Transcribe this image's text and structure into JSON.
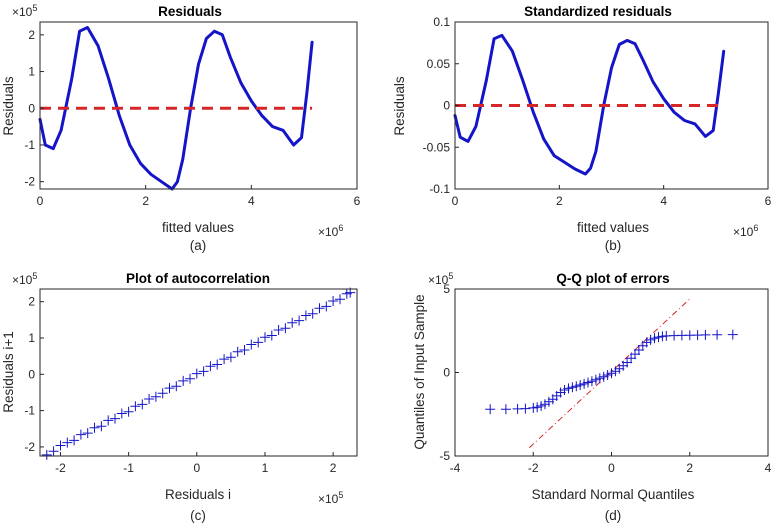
{
  "chart_data": [
    {
      "type": "line",
      "title": "Residuals",
      "xlabel": "fitted values",
      "ylabel": "Residuals",
      "caption": "(a)",
      "x_exponent_label": "×10",
      "x_exponent_power": "6",
      "y_exponent_label": "×10",
      "y_exponent_power": "5",
      "xlim": [
        0,
        6000000
      ],
      "ylim": [
        -220000,
        235000
      ],
      "x_ticks": [
        0,
        2000000,
        4000000,
        6000000
      ],
      "x_tick_labels": [
        "0",
        "2",
        "4",
        "6"
      ],
      "y_ticks": [
        -200000,
        -100000,
        0,
        100000,
        200000
      ],
      "y_tick_labels": [
        "-2",
        "-1",
        "0",
        "1",
        "2"
      ],
      "grid": false,
      "series": [
        {
          "color": "#1414c8",
          "x": [
            0,
            100000,
            250000,
            400000,
            600000,
            750000,
            900000,
            1100000,
            1300000,
            1500000,
            1700000,
            1900000,
            2100000,
            2300000,
            2500000,
            2600000,
            2700000,
            2850000,
            3000000,
            3150000,
            3300000,
            3450000,
            3600000,
            3800000,
            4000000,
            4200000,
            4400000,
            4600000,
            4800000,
            4950000,
            5050000,
            5150000
          ],
          "y": [
            -30000,
            -100000,
            -110000,
            -60000,
            80000,
            210000,
            220000,
            170000,
            80000,
            -20000,
            -100000,
            -150000,
            -180000,
            -200000,
            -220000,
            -200000,
            -140000,
            0,
            120000,
            190000,
            210000,
            200000,
            140000,
            70000,
            20000,
            -20000,
            -50000,
            -60000,
            -100000,
            -80000,
            40000,
            180000
          ]
        },
        {
          "color": "#d62728",
          "dashed": true,
          "x": [
            0,
            5150000
          ],
          "y": [
            0,
            0
          ]
        }
      ]
    },
    {
      "type": "line",
      "title": "Standardized residuals",
      "xlabel": "fitted values",
      "ylabel": "Residuals",
      "caption": "(b)",
      "x_exponent_label": "×10",
      "x_exponent_power": "6",
      "xlim": [
        0,
        6000000
      ],
      "ylim": [
        -0.1,
        0.1
      ],
      "x_ticks": [
        0,
        2000000,
        4000000,
        6000000
      ],
      "x_tick_labels": [
        "0",
        "2",
        "4",
        "6"
      ],
      "y_ticks": [
        -0.1,
        -0.05,
        0,
        0.05,
        0.1
      ],
      "y_tick_labels": [
        "-0.1",
        "-0.05",
        "0",
        "0.05",
        "0.1"
      ],
      "grid": false,
      "series": [
        {
          "color": "#1414c8",
          "x": [
            0,
            100000,
            250000,
            400000,
            600000,
            750000,
            900000,
            1100000,
            1300000,
            1500000,
            1700000,
            1900000,
            2100000,
            2300000,
            2500000,
            2600000,
            2700000,
            2850000,
            3000000,
            3150000,
            3300000,
            3450000,
            3600000,
            3800000,
            4000000,
            4200000,
            4400000,
            4600000,
            4800000,
            4950000,
            5050000,
            5150000
          ],
          "y": [
            -0.012,
            -0.038,
            -0.043,
            -0.025,
            0.03,
            0.08,
            0.084,
            0.065,
            0.03,
            -0.008,
            -0.04,
            -0.06,
            -0.068,
            -0.076,
            -0.082,
            -0.075,
            -0.055,
            0,
            0.045,
            0.073,
            0.078,
            0.074,
            0.055,
            0.028,
            0.008,
            -0.008,
            -0.018,
            -0.022,
            -0.037,
            -0.03,
            0.015,
            0.065
          ]
        },
        {
          "color": "#d62728",
          "dashed": true,
          "x": [
            0,
            5150000
          ],
          "y": [
            0,
            0
          ]
        }
      ]
    },
    {
      "type": "scatter",
      "title": "Plot of autocorrelation",
      "xlabel": "Residuals i",
      "ylabel": "Residuals i+1",
      "caption": "(c)",
      "x_exponent_label": "×10",
      "x_exponent_power": "5",
      "y_exponent_label": "×10",
      "y_exponent_power": "5",
      "xlim": [
        -230000,
        235000
      ],
      "ylim": [
        -225000,
        235000
      ],
      "x_ticks": [
        -200000,
        -100000,
        0,
        100000,
        200000
      ],
      "x_tick_labels": [
        "-2",
        "-1",
        "0",
        "1",
        "2"
      ],
      "y_ticks": [
        -200000,
        -100000,
        0,
        100000,
        200000
      ],
      "y_tick_labels": [
        "-2",
        "-1",
        "0",
        "1",
        "2"
      ],
      "grid": false,
      "marker": "+",
      "color": "#1414c8",
      "series": [
        {
          "x": [
            -220000,
            -210000,
            -200000,
            -190000,
            -180000,
            -170000,
            -160000,
            -150000,
            -140000,
            -130000,
            -120000,
            -110000,
            -100000,
            -90000,
            -80000,
            -70000,
            -60000,
            -50000,
            -40000,
            -30000,
            -20000,
            -10000,
            0,
            10000,
            20000,
            30000,
            40000,
            50000,
            60000,
            70000,
            80000,
            90000,
            100000,
            110000,
            120000,
            130000,
            140000,
            150000,
            160000,
            170000,
            180000,
            190000,
            200000,
            210000,
            220000,
            225000
          ],
          "y": [
            -222000,
            -212000,
            -196000,
            -188000,
            -182000,
            -166000,
            -162000,
            -147000,
            -143000,
            -127000,
            -122000,
            -108000,
            -103000,
            -88000,
            -83000,
            -68000,
            -62000,
            -52000,
            -38000,
            -33000,
            -18000,
            -12000,
            2000,
            8000,
            22000,
            27000,
            42000,
            47000,
            62000,
            67000,
            82000,
            88000,
            102000,
            107000,
            122000,
            127000,
            142000,
            148000,
            162000,
            167000,
            182000,
            187000,
            202000,
            207000,
            222000,
            225000
          ]
        }
      ]
    },
    {
      "type": "scatter",
      "title": "Q-Q plot of errors",
      "xlabel": "Standard Normal Quantiles",
      "ylabel": "Quantiles of Input Sample",
      "caption": "(d)",
      "y_exponent_label": "×10",
      "y_exponent_power": "5",
      "xlim": [
        -4,
        4
      ],
      "ylim": [
        -500000,
        500000
      ],
      "x_ticks": [
        -4,
        -2,
        0,
        2,
        4
      ],
      "x_tick_labels": [
        "-4",
        "-2",
        "0",
        "2",
        "4"
      ],
      "y_ticks": [
        -500000,
        0,
        500000
      ],
      "y_tick_labels": [
        "-5",
        "0",
        "5"
      ],
      "grid": false,
      "marker": "+",
      "color": "#1414c8",
      "reference_line": {
        "color": "#d62728",
        "style": "dash-dot",
        "x": [
          -2.1,
          2.0
        ],
        "y": [
          -450000,
          440000
        ]
      },
      "series": [
        {
          "x": [
            -3.1,
            -2.7,
            -2.4,
            -2.2,
            -2.0,
            -1.9,
            -1.8,
            -1.7,
            -1.6,
            -1.5,
            -1.4,
            -1.3,
            -1.2,
            -1.1,
            -1.0,
            -0.9,
            -0.8,
            -0.7,
            -0.6,
            -0.5,
            -0.4,
            -0.3,
            -0.2,
            -0.1,
            0.0,
            0.1,
            0.2,
            0.3,
            0.4,
            0.5,
            0.6,
            0.7,
            0.8,
            0.9,
            1.0,
            1.1,
            1.2,
            1.3,
            1.4,
            1.6,
            1.8,
            2.0,
            2.2,
            2.4,
            2.7,
            3.1
          ],
          "y": [
            -220000,
            -220000,
            -218000,
            -216000,
            -212000,
            -208000,
            -200000,
            -190000,
            -175000,
            -160000,
            -140000,
            -120000,
            -105000,
            -95000,
            -88000,
            -82000,
            -75000,
            -68000,
            -60000,
            -52000,
            -44000,
            -35000,
            -25000,
            -15000,
            -5000,
            8000,
            22000,
            40000,
            60000,
            85000,
            110000,
            135000,
            160000,
            180000,
            195000,
            205000,
            212000,
            216000,
            219000,
            221000,
            222000,
            223000,
            224000,
            225000,
            226000,
            227000
          ]
        }
      ]
    }
  ]
}
